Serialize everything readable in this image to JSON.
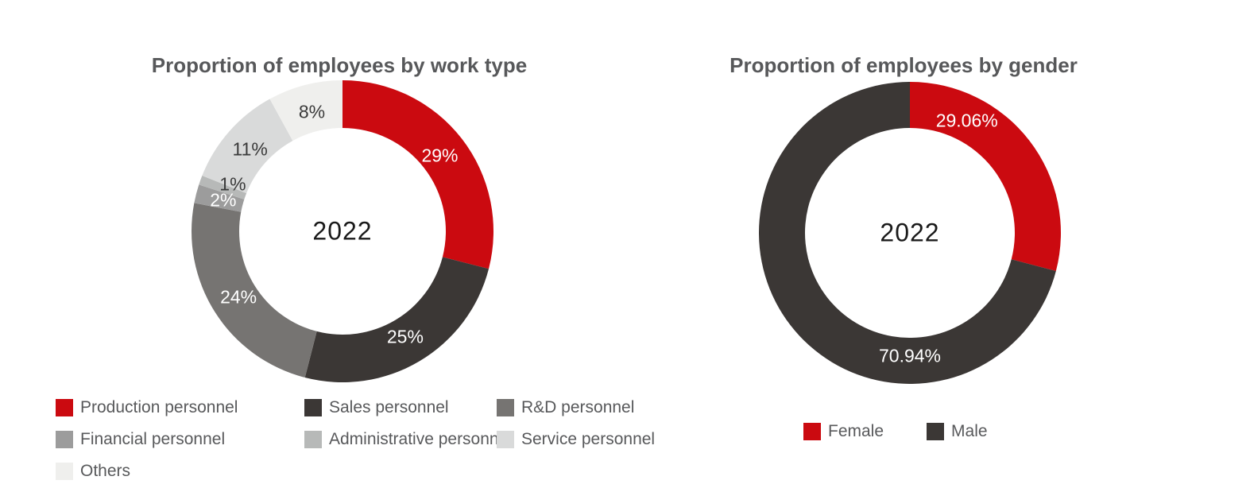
{
  "chart_data": [
    {
      "type": "pie",
      "subtype": "donut",
      "title": "Proportion of employees by work type",
      "center_label": "2022",
      "legend_position": "bottom",
      "start_angle_deg": 0,
      "direction": "clockwise",
      "slices": [
        {
          "label": "Production personnel",
          "value": 29,
          "display": "29%",
          "color": "#cb0a10",
          "label_color": "#ffffff"
        },
        {
          "label": "Sales personnel",
          "value": 25,
          "display": "25%",
          "color": "#3b3735",
          "label_color": "#ffffff"
        },
        {
          "label": "R&D personnel",
          "value": 24,
          "display": "24%",
          "color": "#767472",
          "label_color": "#ffffff"
        },
        {
          "label": "Financial personnel",
          "value": 2,
          "display": "2%",
          "color": "#9c9c9c",
          "label_color": "#ffffff"
        },
        {
          "label": "Administrative personnel",
          "value": 1,
          "display": "1%",
          "color": "#b7b9b8",
          "label_color": "#3a3a3a",
          "label_angle": 293,
          "label_radius": 150
        },
        {
          "label": "Service personnel",
          "value": 11,
          "display": "11%",
          "color": "#d9dada",
          "label_color": "#3a3a3a"
        },
        {
          "label": "Others",
          "value": 8,
          "display": "8%",
          "color": "#efefed",
          "label_color": "#3a3a3a"
        }
      ]
    },
    {
      "type": "pie",
      "subtype": "donut",
      "title": "Proportion of employees by gender",
      "center_label": "2022",
      "legend_position": "bottom",
      "start_angle_deg": 0,
      "direction": "clockwise",
      "slices": [
        {
          "label": "Female",
          "value": 29.06,
          "display": "29.06%",
          "color": "#cb0a10",
          "label_color": "#ffffff",
          "label_angle": 27,
          "label_radius": 158
        },
        {
          "label": "Male",
          "value": 70.94,
          "display": "70.94%",
          "color": "#3b3735",
          "label_color": "#ffffff",
          "label_angle": 180,
          "label_radius": 155
        }
      ]
    }
  ],
  "styles": {
    "title_color": "#57585a",
    "legend_text_color": "#58595b",
    "center_label_color": "#1a1a1a",
    "background": "#ffffff"
  }
}
